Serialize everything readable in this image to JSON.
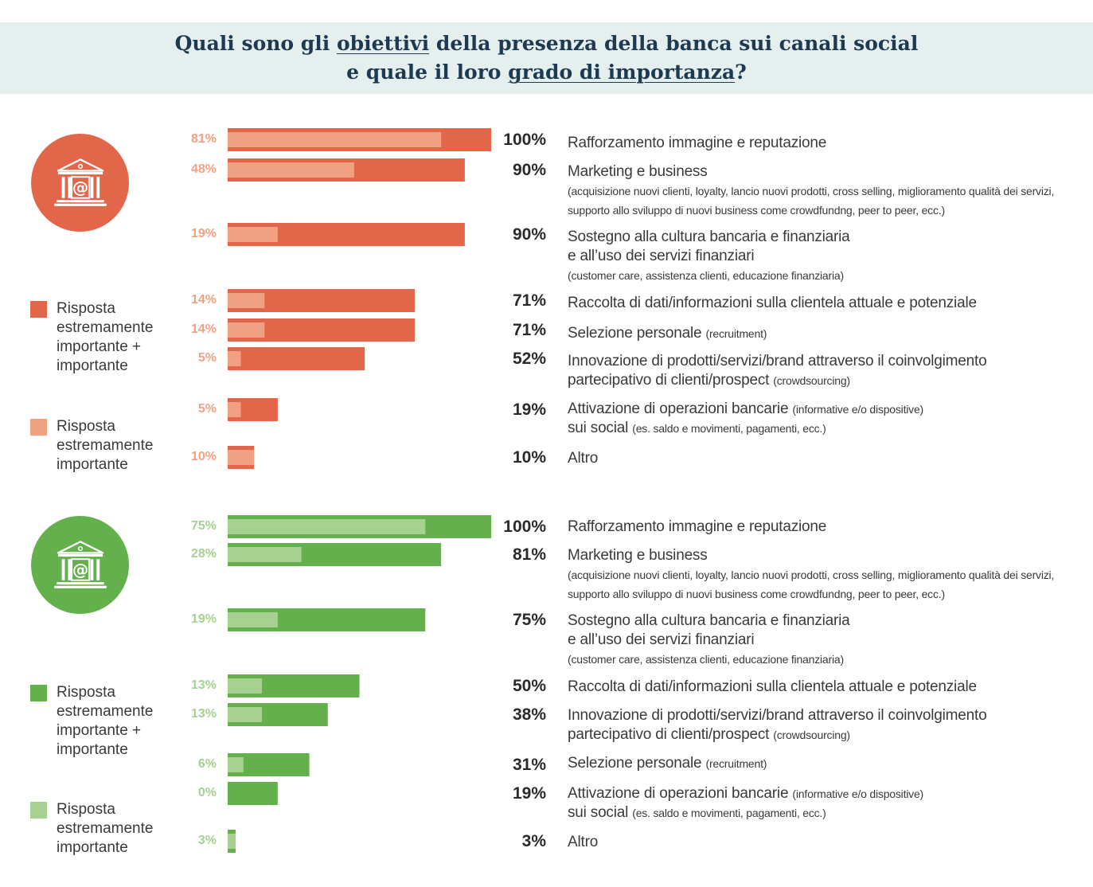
{
  "header": {
    "title_line1": [
      "Quali sono gli ",
      "obiettivi",
      " della presenza della banca sui canali social"
    ],
    "title_line2": [
      "e quale il loro ",
      "grado di importanza",
      "?"
    ]
  },
  "charts": [
    {
      "name": "orange",
      "icon": "bank-at-icon",
      "dark_color": "#e2674a",
      "light_color": "#f0a183",
      "legend": {
        "dark_label": "Risposta estremamente importante + importante",
        "light_label": "Risposta estremamente importante"
      },
      "rows": [
        {
          "light_label": "81%",
          "total_label": "100%",
          "label": "Rafforzamento immagine e reputazione",
          "note": "",
          "label2": "",
          "note2": "",
          "sub": ""
        },
        {
          "light_label": "48%",
          "total_label": "90%",
          "label": "Marketing e business",
          "note": "",
          "label2": "",
          "note2": "",
          "sub": "(acquisizione nuovi clienti, loyalty, lancio nuovi prodotti, cross selling, miglioramento qualità dei servizi, supporto allo sviluppo di nuovi business come crowdfundng, peer to peer, ecc.)"
        },
        {
          "light_label": "19%",
          "total_label": "90%",
          "label": "Sostegno alla cultura bancaria e finanziaria",
          "note": "",
          "label2": "e all’uso dei servizi finanziari",
          "note2": "",
          "sub": "(customer care, assistenza clienti, educazione finanziaria)"
        },
        {
          "light_label": "14%",
          "total_label": "71%",
          "label": "Raccolta di dati/informazioni sulla clientela attuale e potenziale",
          "note": "",
          "label2": "",
          "note2": "",
          "sub": ""
        },
        {
          "light_label": "14%",
          "total_label": "71%",
          "label": "Selezione personale",
          "note": "(recruitment)",
          "label2": "",
          "note2": "",
          "sub": ""
        },
        {
          "light_label": "5%",
          "total_label": "52%",
          "label": "Innovazione di prodotti/servizi/brand attraverso il coinvolgimento",
          "note": "",
          "label2": "partecipativo di clienti/prospect",
          "note2": "(crowdsourcing)",
          "sub": ""
        },
        {
          "light_label": "5%",
          "total_label": "19%",
          "label": "Attivazione di operazioni bancarie",
          "note": "(informative e/o dispositive)",
          "label2": "sui social",
          "note2": "(es. saldo e movimenti, pagamenti, ecc.)",
          "sub": ""
        },
        {
          "light_label": "10%",
          "total_label": "10%",
          "label": "Altro",
          "note": "",
          "label2": "",
          "note2": "",
          "sub": ""
        }
      ]
    },
    {
      "name": "green",
      "icon": "bank-at-icon",
      "dark_color": "#64b04c",
      "light_color": "#a7d190",
      "legend": {
        "dark_label": "Risposta estremamente importante + importante",
        "light_label": "Risposta estremamente importante"
      },
      "rows": [
        {
          "light_label": "75%",
          "total_label": "100%",
          "label": "Rafforzamento immagine e reputazione",
          "note": "",
          "label2": "",
          "note2": "",
          "sub": ""
        },
        {
          "light_label": "28%",
          "total_label": "81%",
          "label": "Marketing e business",
          "note": "",
          "label2": "",
          "note2": "",
          "sub": "(acquisizione nuovi clienti, loyalty, lancio nuovi prodotti, cross selling, miglioramento qualità dei servizi, supporto allo sviluppo di nuovi business come crowdfundng, peer to peer, ecc.)"
        },
        {
          "light_label": "19%",
          "total_label": "75%",
          "label": "Sostegno alla cultura bancaria e finanziaria",
          "note": "",
          "label2": "e all’uso dei servizi finanziari",
          "note2": "",
          "sub": "(customer care, assistenza clienti, educazione finanziaria)"
        },
        {
          "light_label": "13%",
          "total_label": "50%",
          "label": "Raccolta di dati/informazioni sulla clientela attuale e potenziale",
          "note": "",
          "label2": "",
          "note2": "",
          "sub": ""
        },
        {
          "light_label": "13%",
          "total_label": "38%",
          "label": "Innovazione di prodotti/servizi/brand attraverso il coinvolgimento",
          "note": "",
          "label2": "partecipativo di clienti/prospect",
          "note2": "(crowdsourcing)",
          "sub": ""
        },
        {
          "light_label": "6%",
          "total_label": "31%",
          "label": "Selezione personale",
          "note": "(recruitment)",
          "label2": "",
          "note2": "",
          "sub": ""
        },
        {
          "light_label": "0%",
          "total_label": "19%",
          "label": "Attivazione di operazioni bancarie",
          "note": "(informative e/o dispositive)",
          "label2": "sui social",
          "note2": "(es. saldo e movimenti, pagamenti, ecc.)",
          "sub": ""
        },
        {
          "light_label": "3%",
          "total_label": "3%",
          "label": "Altro",
          "note": "",
          "label2": "",
          "note2": "",
          "sub": ""
        }
      ]
    }
  ],
  "chart_data": [
    {
      "type": "bar",
      "orientation": "horizontal",
      "title": "Quali sono gli obiettivi della presenza della banca sui canali social e quale il loro grado di importanza?",
      "categories": [
        "Rafforzamento immagine e reputazione",
        "Marketing e business",
        "Sostegno alla cultura bancaria e finanziaria e all’uso dei servizi finanziari",
        "Raccolta di dati/informazioni sulla clientela attuale e potenziale",
        "Selezione personale",
        "Innovazione di prodotti/servizi/brand attraverso il coinvolgimento partecipativo di clienti/prospect",
        "Attivazione di operazioni bancarie sui social",
        "Altro"
      ],
      "series": [
        {
          "name": "Risposta estremamente importante + importante",
          "values": [
            100,
            90,
            90,
            71,
            71,
            52,
            19,
            10
          ]
        },
        {
          "name": "Risposta estremamente importante",
          "values": [
            81,
            48,
            19,
            14,
            14,
            5,
            5,
            10
          ]
        }
      ],
      "xlim": [
        0,
        100
      ]
    },
    {
      "type": "bar",
      "orientation": "horizontal",
      "title": "Quali sono gli obiettivi della presenza della banca sui canali social e quale il loro grado di importanza?",
      "categories": [
        "Rafforzamento immagine e reputazione",
        "Marketing e business",
        "Sostegno alla cultura bancaria e finanziaria e all’uso dei servizi finanziari",
        "Raccolta di dati/informazioni sulla clientela attuale e potenziale",
        "Innovazione di prodotti/servizi/brand attraverso il coinvolgimento partecipativo di clienti/prospect",
        "Selezione personale",
        "Attivazione di operazioni bancarie sui social",
        "Altro"
      ],
      "series": [
        {
          "name": "Risposta estremamente importante + importante",
          "values": [
            100,
            81,
            75,
            50,
            38,
            31,
            19,
            3
          ]
        },
        {
          "name": "Risposta estremamente importante",
          "values": [
            75,
            28,
            19,
            13,
            13,
            6,
            0,
            3
          ]
        }
      ],
      "xlim": [
        0,
        100
      ]
    }
  ]
}
